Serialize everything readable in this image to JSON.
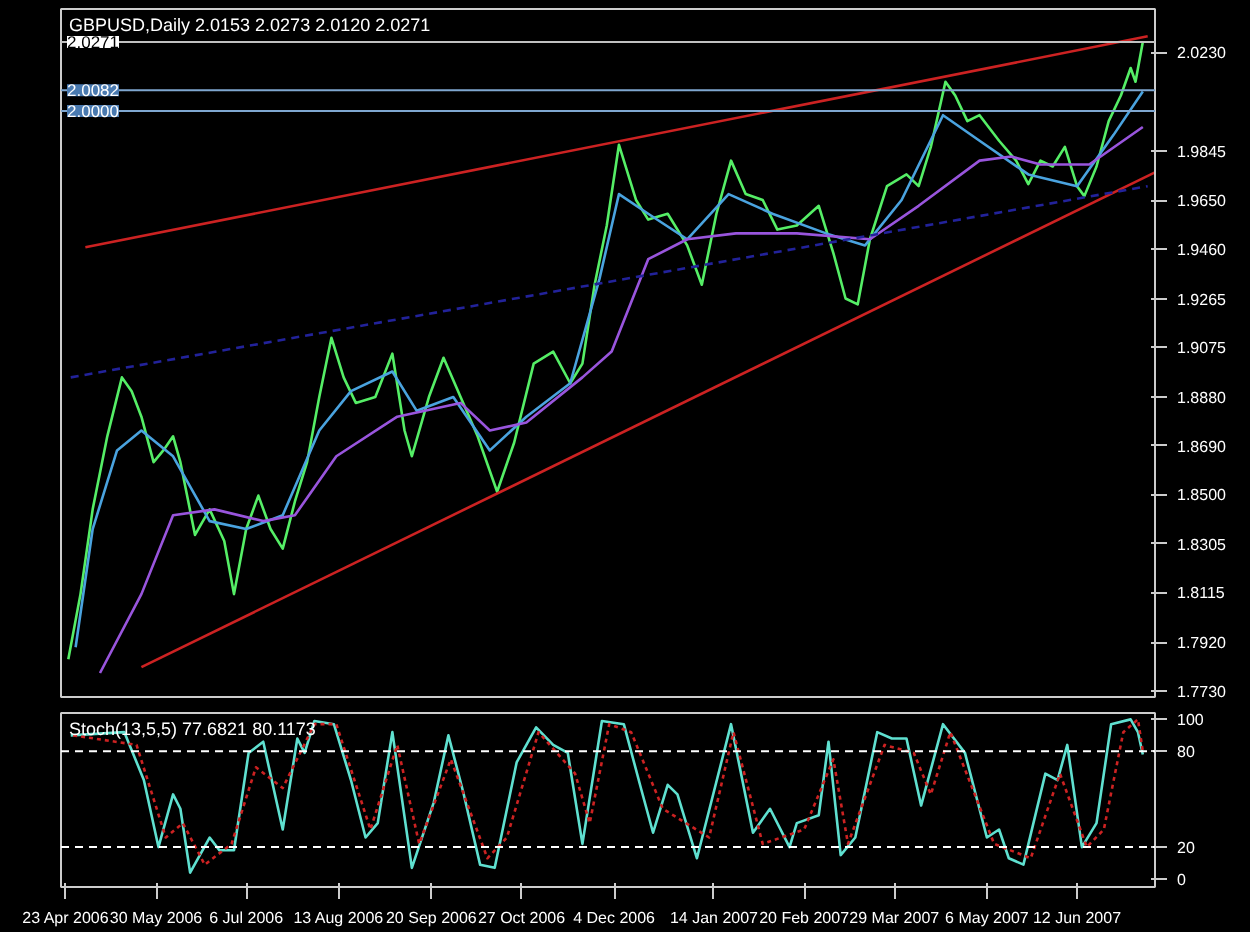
{
  "chart_data": [
    {
      "type": "line",
      "title": "GBPUSD,Daily  2.0153 2.0273 2.0120 2.0271",
      "xlim": [
        "2006-04-21",
        "2007-07-14"
      ],
      "ylim": [
        1.7705,
        2.04
      ],
      "yticks": [
        {
          "value": 1.773,
          "label": "1.7730"
        },
        {
          "value": 1.792,
          "label": "1.7920"
        },
        {
          "value": 1.8115,
          "label": "1.8115"
        },
        {
          "value": 1.8305,
          "label": "1.8305"
        },
        {
          "value": 1.85,
          "label": "1.8500"
        },
        {
          "value": 1.869,
          "label": "1.8690"
        },
        {
          "value": 1.888,
          "label": "1.8880"
        },
        {
          "value": 1.9075,
          "label": "1.9075"
        },
        {
          "value": 1.9265,
          "label": "1.9265"
        },
        {
          "value": 1.946,
          "label": "1.9460"
        },
        {
          "value": 1.965,
          "label": "1.9650"
        },
        {
          "value": 1.9845,
          "label": "1.9845"
        },
        {
          "value": 2.023,
          "label": "2.0230"
        }
      ],
      "tick_labels": "y",
      "grid": false,
      "series": [
        {
          "color": "#55ee66",
          "line_style": "solid",
          "x": [
            "2006-04-24",
            "2006-04-29",
            "2006-05-04",
            "2006-05-10",
            "2006-05-16",
            "2006-05-20",
            "2006-05-24",
            "2006-05-29",
            "2006-06-02",
            "2006-06-06",
            "2006-06-09",
            "2006-06-15",
            "2006-06-21",
            "2006-06-27",
            "2006-07-01",
            "2006-07-06",
            "2006-07-11",
            "2006-07-16",
            "2006-07-21",
            "2006-07-26",
            "2006-07-31",
            "2006-08-05",
            "2006-08-10",
            "2006-08-15",
            "2006-08-20",
            "2006-08-28",
            "2006-09-04",
            "2006-09-09",
            "2006-09-12",
            "2006-09-19",
            "2006-09-25",
            "2006-10-02",
            "2006-10-09",
            "2006-10-17",
            "2006-10-24",
            "2006-11-01",
            "2006-11-09",
            "2006-11-16",
            "2006-11-21",
            "2006-11-26",
            "2006-12-01",
            "2006-12-06",
            "2006-12-13",
            "2006-12-18",
            "2006-12-26",
            "2007-01-03",
            "2007-01-09",
            "2007-01-15",
            "2007-01-21",
            "2007-01-27",
            "2007-02-03",
            "2007-02-09",
            "2007-02-17",
            "2007-02-26",
            "2007-03-04",
            "2007-03-09",
            "2007-03-14",
            "2007-03-19",
            "2007-03-26",
            "2007-04-03",
            "2007-04-08",
            "2007-04-13",
            "2007-04-19",
            "2007-04-23",
            "2007-04-28",
            "2007-05-03",
            "2007-05-11",
            "2007-05-18",
            "2007-05-23",
            "2007-05-28",
            "2007-06-02",
            "2007-06-07",
            "2007-06-12",
            "2007-06-15",
            "2007-06-20",
            "2007-06-25",
            "2007-06-30",
            "2007-07-04",
            "2007-07-06",
            "2007-07-09"
          ],
          "values": [
            1.7853,
            1.8108,
            1.844,
            1.8726,
            1.8957,
            1.8903,
            1.8803,
            1.8625,
            1.8671,
            1.8726,
            1.8625,
            1.834,
            1.844,
            1.8316,
            1.8108,
            1.8363,
            1.8494,
            1.8363,
            1.8286,
            1.8471,
            1.8625,
            1.888,
            1.9112,
            1.8957,
            1.8857,
            1.888,
            1.905,
            1.8749,
            1.8648,
            1.888,
            1.9034,
            1.888,
            1.8726,
            1.8509,
            1.8702,
            1.9011,
            1.9058,
            1.8934,
            1.9011,
            1.932,
            1.9552,
            1.9868,
            1.9652,
            1.9575,
            1.9598,
            1.9474,
            1.932,
            1.9598,
            1.9806,
            1.9675,
            1.9652,
            1.9536,
            1.9552,
            1.9629,
            1.9444,
            1.9266,
            1.9243,
            1.9498,
            1.9706,
            1.9752,
            1.9706,
            1.986,
            2.0115,
            2.0061,
            1.9961,
            1.9984,
            1.9884,
            1.9806,
            1.9714,
            1.9806,
            1.9783,
            1.986,
            1.9706,
            1.9667,
            1.9783,
            1.9961,
            2.0061,
            2.0169,
            2.0115,
            2.0271
          ]
        },
        {
          "color": "#4aa3df",
          "line_style": "solid",
          "x": [
            "2006-04-27",
            "2006-05-04",
            "2006-05-14",
            "2006-05-24",
            "2006-06-06",
            "2006-06-21",
            "2006-07-06",
            "2006-07-21",
            "2006-08-05",
            "2006-08-18",
            "2006-09-04",
            "2006-09-14",
            "2006-09-29",
            "2006-10-14",
            "2006-10-29",
            "2006-11-16",
            "2006-11-28",
            "2006-12-06",
            "2006-12-18",
            "2007-01-03",
            "2007-01-20",
            "2007-02-07",
            "2007-03-01",
            "2007-03-17",
            "2007-04-01",
            "2007-04-18",
            "2007-05-03",
            "2007-05-23",
            "2007-06-12",
            "2007-06-27",
            "2007-07-09"
          ],
          "values": [
            1.79,
            1.8363,
            1.8671,
            1.8749,
            1.8648,
            1.8394,
            1.8363,
            1.8417,
            1.8749,
            1.8903,
            1.898,
            1.8826,
            1.888,
            1.8671,
            1.8803,
            1.8934,
            1.9343,
            1.9675,
            1.9598,
            1.9498,
            1.9675,
            1.9598,
            1.9521,
            1.9474,
            1.9652,
            1.9984,
            1.9884,
            1.9752,
            1.9706,
            1.9907,
            2.0077
          ]
        },
        {
          "color": "#9955dd",
          "line_style": "solid",
          "x": [
            "2006-05-07",
            "2006-05-24",
            "2006-06-06",
            "2006-06-23",
            "2006-07-13",
            "2006-07-26",
            "2006-08-12",
            "2006-09-06",
            "2006-10-02",
            "2006-10-14",
            "2006-10-29",
            "2006-11-21",
            "2006-12-03",
            "2006-12-18",
            "2007-01-03",
            "2007-01-23",
            "2007-02-17",
            "2007-03-19",
            "2007-04-08",
            "2007-05-03",
            "2007-05-16",
            "2007-05-28",
            "2007-06-17",
            "2007-07-09"
          ],
          "values": [
            1.7799,
            1.8108,
            1.8417,
            1.844,
            1.8394,
            1.8417,
            1.8648,
            1.8803,
            1.8857,
            1.8749,
            1.878,
            1.8957,
            1.9058,
            1.942,
            1.9498,
            1.9521,
            1.9521,
            1.9498,
            1.9629,
            1.9806,
            1.9822,
            1.9791,
            1.9791,
            1.9938
          ]
        },
        {
          "color": "#cc2222",
          "line_style": "solid",
          "x": [
            "2006-05-01",
            "2007-07-11"
          ],
          "values": [
            1.9467,
            2.0293
          ]
        },
        {
          "color": "#cc2222",
          "line_style": "solid",
          "x": [
            "2006-05-24",
            "2007-07-14"
          ],
          "values": [
            1.7822,
            1.976
          ]
        },
        {
          "color": "#22229a",
          "line_style": "dashed",
          "x": [
            "2006-04-25",
            "2007-07-11"
          ],
          "values": [
            1.8957,
            1.9706
          ]
        }
      ],
      "ref_lines": [
        {
          "axis": "y",
          "value": 2.0271,
          "label": "2.0271",
          "color": "#c0c0c0"
        },
        {
          "axis": "y",
          "value": 2.0082,
          "label": "2.0082",
          "color": "#7fa7d0"
        },
        {
          "axis": "y",
          "value": 2.0,
          "label": "2.0000",
          "color": "#7fa7d0"
        }
      ]
    },
    {
      "type": "line",
      "title": "Stoch(13,5,5) 77.6821 80.1173",
      "xlim": [
        "2006-04-21",
        "2007-07-14"
      ],
      "xticks": [
        {
          "value": "2006-04-23",
          "label": "23 Apr 2006"
        },
        {
          "value": "2006-05-30",
          "label": "30 May 2006"
        },
        {
          "value": "2006-07-06",
          "label": "6 Jul 2006"
        },
        {
          "value": "2006-08-13",
          "label": "13 Aug 2006"
        },
        {
          "value": "2006-09-20",
          "label": "20 Sep 2006"
        },
        {
          "value": "2006-10-27",
          "label": "27 Oct 2006"
        },
        {
          "value": "2006-12-04",
          "label": "4 Dec 2006"
        },
        {
          "value": "2007-01-14",
          "label": "14 Jan 2007"
        },
        {
          "value": "2007-02-20",
          "label": "20 Feb 2007"
        },
        {
          "value": "2007-03-29",
          "label": "29 Mar 2007"
        },
        {
          "value": "2007-05-06",
          "label": "6 May 2007"
        },
        {
          "value": "2007-06-12",
          "label": "12 Jun 2007"
        }
      ],
      "ylim": [
        -5,
        104
      ],
      "yticks": [
        0,
        20,
        80,
        100
      ],
      "grid": false,
      "series": [
        {
          "color": "#5fe0d0",
          "line_style": "solid",
          "x": [
            "2006-04-25",
            "2006-05-17",
            "2006-05-25",
            "2006-05-31",
            "2006-06-06",
            "2006-06-09",
            "2006-06-13",
            "2006-06-21",
            "2006-06-25",
            "2006-07-01",
            "2006-07-07",
            "2006-07-13",
            "2006-07-21",
            "2006-07-27",
            "2006-07-30",
            "2006-08-03",
            "2006-08-11",
            "2006-08-18",
            "2006-08-24",
            "2006-08-29",
            "2006-09-04",
            "2006-09-12",
            "2006-09-21",
            "2006-09-27",
            "2006-10-03",
            "2006-10-10",
            "2006-10-16",
            "2006-10-25",
            "2006-11-02",
            "2006-11-09",
            "2006-11-15",
            "2006-11-21",
            "2006-11-29",
            "2006-12-08",
            "2006-12-15",
            "2006-12-20",
            "2006-12-26",
            "2006-12-30",
            "2007-01-07",
            "2007-01-21",
            "2007-01-30",
            "2007-02-06",
            "2007-02-14",
            "2007-02-17",
            "2007-02-26",
            "2007-03-02",
            "2007-03-07",
            "2007-03-13",
            "2007-03-22",
            "2007-03-28",
            "2007-04-03",
            "2007-04-09",
            "2007-04-18",
            "2007-04-27",
            "2007-05-06",
            "2007-05-11",
            "2007-05-15",
            "2007-05-21",
            "2007-05-30",
            "2007-06-04",
            "2007-06-08",
            "2007-06-14",
            "2007-06-20",
            "2007-06-26",
            "2007-07-04",
            "2007-07-07",
            "2007-07-09"
          ],
          "values": [
            90,
            92,
            62,
            20,
            53,
            44,
            4,
            26,
            18,
            18,
            79,
            86,
            31,
            88,
            79,
            99,
            97,
            62,
            26,
            35,
            92,
            7,
            48,
            90,
            55,
            9,
            7,
            73,
            95,
            84,
            79,
            22,
            99,
            97,
            57,
            29,
            59,
            53,
            13,
            97,
            29,
            44,
            20,
            35,
            40,
            86,
            15,
            26,
            92,
            88,
            88,
            46,
            97,
            79,
            26,
            31,
            13,
            9,
            66,
            62,
            84,
            20,
            35,
            97,
            100,
            92,
            78
          ]
        },
        {
          "color": "#cc2222",
          "line_style": "dotted",
          "x": [
            "2006-04-26",
            "2006-05-22",
            "2006-06-03",
            "2006-06-10",
            "2006-06-19",
            "2006-06-30",
            "2006-07-10",
            "2006-07-21",
            "2006-08-03",
            "2006-08-12",
            "2006-08-26",
            "2006-09-06",
            "2006-09-15",
            "2006-09-28",
            "2006-10-13",
            "2006-10-21",
            "2006-11-03",
            "2006-11-18",
            "2006-11-24",
            "2006-12-02",
            "2006-12-11",
            "2006-12-24",
            "2007-01-12",
            "2007-01-22",
            "2007-02-03",
            "2007-02-20",
            "2007-03-04",
            "2007-03-10",
            "2007-03-25",
            "2007-04-06",
            "2007-04-13",
            "2007-04-21",
            "2007-05-09",
            "2007-05-24",
            "2007-06-05",
            "2007-06-16",
            "2007-06-23",
            "2007-07-01",
            "2007-07-07",
            "2007-07-09"
          ],
          "values": [
            90,
            84,
            26,
            35,
            9,
            22,
            70,
            57,
            97,
            97,
            31,
            84,
            22,
            75,
            13,
            26,
            92,
            66,
            35,
            97,
            92,
            44,
            26,
            92,
            22,
            31,
            75,
            22,
            84,
            79,
            53,
            92,
            22,
            13,
            66,
            20,
            31,
            92,
            100,
            80
          ]
        }
      ],
      "ref_lines": [
        {
          "axis": "y",
          "value": 80,
          "color": "#ffffff",
          "line_style": "dashed"
        },
        {
          "axis": "y",
          "value": 20,
          "color": "#ffffff",
          "line_style": "dashed"
        }
      ]
    }
  ]
}
